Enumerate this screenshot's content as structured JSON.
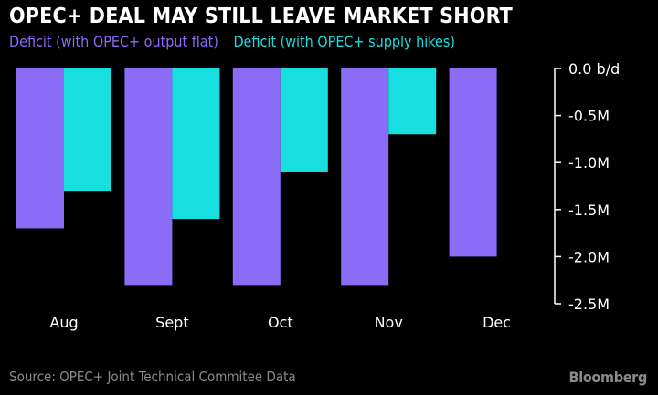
{
  "colors": {
    "background": "#000000",
    "series1": "#8b6cf6",
    "series2": "#17dfe0",
    "text": "#ffffff",
    "muted": "#8a8a8a"
  },
  "footer": {
    "source": "Source: OPEC+ Joint Technical Commitee Data",
    "brand": "Bloomberg"
  },
  "chart_data": {
    "type": "bar",
    "title": "OPEC+ DEAL MAY STILL LEAVE MARKET SHORT",
    "categories": [
      "Aug",
      "Sept",
      "Oct",
      "Nov",
      "Dec"
    ],
    "series": [
      {
        "name": "Deficit (with OPEC+ output flat)",
        "values": [
          -1.7,
          -2.3,
          -2.3,
          -2.3,
          -2.0
        ]
      },
      {
        "name": "Deficit (with OPEC+ supply hikes)",
        "values": [
          -1.3,
          -1.6,
          -1.1,
          -0.7,
          null
        ]
      }
    ],
    "ylim": [
      -2.5,
      0
    ],
    "yticks": [
      0,
      -0.5,
      -1.0,
      -1.5,
      -2.0,
      -2.5
    ],
    "ytick_labels": [
      "0.0 b/d",
      "-0.5M",
      "-1.0M",
      "-1.5M",
      "-2.0M",
      "-2.5M"
    ],
    "axis_position": "right",
    "grid": false,
    "legend_position": "top-left"
  }
}
